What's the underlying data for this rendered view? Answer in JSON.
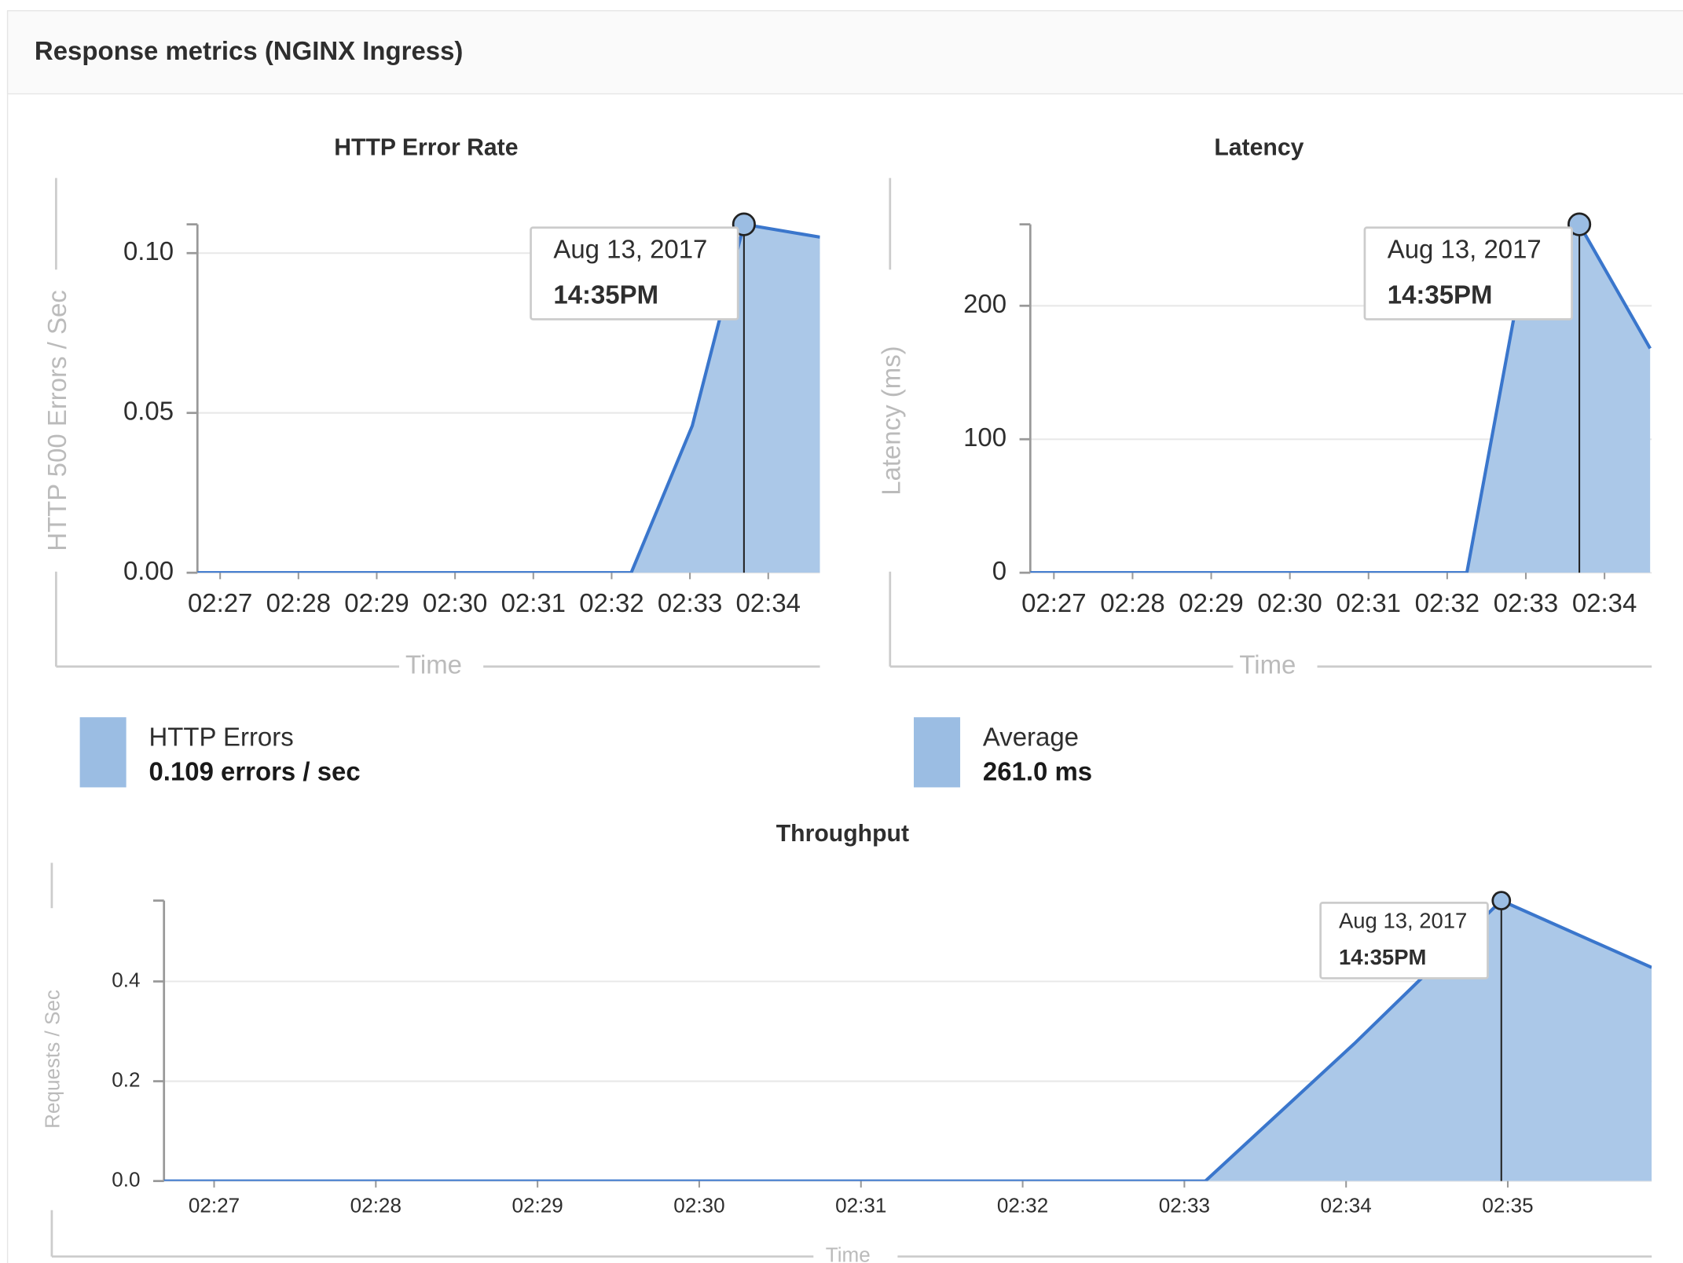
{
  "header": {
    "title": "Response metrics (NGINX Ingress)"
  },
  "chart_data": [
    {
      "type": "area",
      "title": "HTTP Error Rate",
      "y_label": "HTTP 500 Errors / Sec",
      "x_label": "Time",
      "xlim": [
        146.71,
        154.66
      ],
      "ylim": [
        0,
        0.109
      ],
      "xticks": [
        {
          "value": 147,
          "label": "02:27"
        },
        {
          "value": 148,
          "label": "02:28"
        },
        {
          "value": 149,
          "label": "02:29"
        },
        {
          "value": 150,
          "label": "02:30"
        },
        {
          "value": 151,
          "label": "02:31"
        },
        {
          "value": 152,
          "label": "02:32"
        },
        {
          "value": 153,
          "label": "02:33"
        },
        {
          "value": 154,
          "label": "02:34"
        }
      ],
      "yticks": [
        {
          "value": 0,
          "label": "0.00"
        },
        {
          "value": 0.05,
          "label": "0.05"
        },
        {
          "value": 0.1,
          "label": "0.10"
        }
      ],
      "grid": true,
      "series": [
        {
          "name": "HTTP Errors",
          "color": "#3a76cc",
          "x": [
            146.71,
            152.25,
            153.03,
            153.69,
            154.66
          ],
          "values": [
            0,
            0,
            0.046,
            0.109,
            0.105
          ]
        }
      ],
      "legend_value": 0.109,
      "legend_value_label": "0.109 errors / sec",
      "tooltip": {
        "date": "Aug 13, 2017",
        "time": "14:35PM"
      }
    },
    {
      "type": "area",
      "title": "Latency",
      "y_label": "Latency (ms)",
      "x_label": "Time",
      "xlim": [
        146.7,
        154.6
      ],
      "ylim": [
        0,
        261
      ],
      "xticks": [
        {
          "value": 147,
          "label": "02:27"
        },
        {
          "value": 148,
          "label": "02:28"
        },
        {
          "value": 149,
          "label": "02:29"
        },
        {
          "value": 150,
          "label": "02:30"
        },
        {
          "value": 151,
          "label": "02:31"
        },
        {
          "value": 152,
          "label": "02:32"
        },
        {
          "value": 153,
          "label": "02:33"
        },
        {
          "value": 154,
          "label": "02:34"
        }
      ],
      "yticks": [
        0,
        100,
        200
      ],
      "grid": true,
      "series": [
        {
          "name": "Average",
          "color": "#3a76cc",
          "x": [
            146.7,
            152.25,
            152.86,
            153.68,
            154.58
          ],
          "values": [
            0,
            0,
            195,
            261,
            168
          ]
        }
      ],
      "legend_value": 261,
      "legend_value_label": "261.0 ms",
      "tooltip": {
        "date": "Aug 13, 2017",
        "time": "14:35PM"
      }
    },
    {
      "type": "area",
      "title": "Throughput",
      "y_label": "Requests / Sec",
      "x_label": "Time",
      "xlim": [
        146.69,
        155.89
      ],
      "ylim": [
        0,
        0.562
      ],
      "xticks": [
        {
          "value": 147,
          "label": "02:27"
        },
        {
          "value": 148,
          "label": "02:28"
        },
        {
          "value": 149,
          "label": "02:29"
        },
        {
          "value": 150,
          "label": "02:30"
        },
        {
          "value": 151,
          "label": "02:31"
        },
        {
          "value": 152,
          "label": "02:32"
        },
        {
          "value": 153,
          "label": "02:33"
        },
        {
          "value": 154,
          "label": "02:34"
        },
        {
          "value": 155,
          "label": "02:35"
        }
      ],
      "yticks": [
        {
          "value": 0,
          "label": "0.0"
        },
        {
          "value": 0.2,
          "label": "0.2"
        },
        {
          "value": 0.4,
          "label": "0.4"
        }
      ],
      "grid": true,
      "series": [
        {
          "name": "Throughput",
          "color": "#3a76cc",
          "x": [
            146.69,
            153.13,
            154.05,
            154.96,
            155.89
          ],
          "values": [
            0,
            0,
            0.275,
            0.562,
            0.428
          ]
        }
      ],
      "tooltip": {
        "date": "Aug 13, 2017",
        "time": "14:35PM"
      }
    }
  ]
}
